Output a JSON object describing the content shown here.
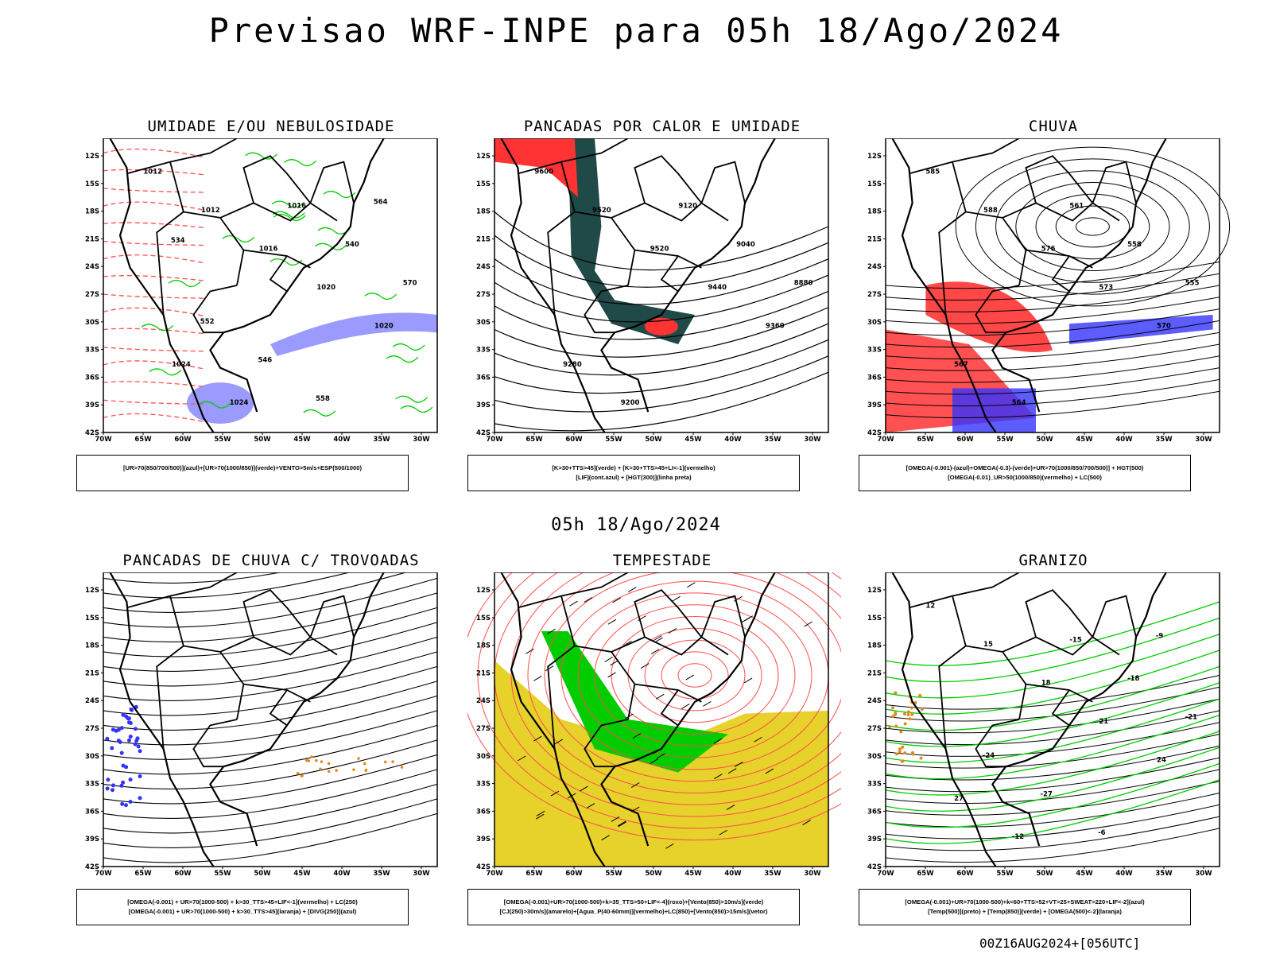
{
  "header": {
    "title": "Previsao WRF-INPE  para 05h 18/Ago/2024"
  },
  "subtitle": "05h 18/Ago/2024",
  "footer": "00Z16AUG2024+[056UTC]",
  "axes": {
    "lat_labels": [
      "12S",
      "15S",
      "18S",
      "21S",
      "24S",
      "27S",
      "30S",
      "33S",
      "36S",
      "39S",
      "42S"
    ],
    "lon_labels": [
      "70W",
      "65W",
      "60W",
      "55W",
      "50W",
      "45W",
      "40W",
      "35W",
      "30W"
    ]
  },
  "panels": [
    {
      "title": "UMIDADE E/OU NEBULOSIDADE",
      "legend": [
        "[UR>70(850/700/500)](azul)+[UR>70(1000/850)](verde)+VENTO>5m/s+ESP(500/1000)"
      ],
      "labels": [
        "1012",
        "1012",
        "1016",
        "1020",
        "1020",
        "1024",
        "1024",
        "1016",
        "540",
        "570",
        "552",
        "546",
        "558",
        "564",
        "534"
      ]
    },
    {
      "title": "PANCADAS POR CALOR E UMIDADE",
      "legend": [
        "[K>30+TTS>45](verde) + [K>30+TTS>45+LI<-1](vermelho)",
        "[LIF](cont.azul) + [HGT(300)](linha preta)"
      ],
      "labels": [
        "9600",
        "9520",
        "9520",
        "9440",
        "9360",
        "9280",
        "9200",
        "9120",
        "9040",
        "8880"
      ]
    },
    {
      "title": "CHUVA",
      "legend": [
        "[OMEGA(-0.001)-(azul)+OMEGA(-0.3)-(verde)+UR>70(1000/850/700/500)] + HGT(500)",
        "[OMEGA(-0.01)_UR>50(1000/850)(vermelho) + LC(500)"
      ],
      "labels": [
        "585",
        "588",
        "576",
        "573",
        "570",
        "567",
        "564",
        "561",
        "558",
        "555"
      ]
    },
    {
      "title": "PANCADAS DE CHUVA C/ TROVOADAS",
      "legend": [
        "[OMEGA(-0.001) + UR>70(1000-500) + k>30_TTS>45+LIF<-1](vermelho) + LC(250)",
        "[OMEGA(-0.001) + UR>70(1000-500) + k>30_TTS>45](laranja) + [DIVG(250)](azul)"
      ],
      "labels": []
    },
    {
      "title": "TEMPESTADE",
      "legend": [
        "[OMEGA(-0.001)+UR>70(1000-500)+k>35_TTS>50+LIF<-4](roxo)+[Vento(850)>10m/s](verde)",
        "[CJ(250)>30m/s](amarelo)+[Agua_P(40-60mm)](vermelho)+LC(850)+[Vento(850)>15m/s](vetor)"
      ],
      "labels": []
    },
    {
      "title": "GRANIZO",
      "legend": [
        "[OMEGA(-0.001)+UR>70(1000-500)+k<60+TTS>52+VT>25+SWEAT>220+LIF<-2](azul)",
        "[Temp(500)](preto) + [Temp(850)](verde) + [OMEGA(500)<-2](laranja)"
      ],
      "labels": [
        "12",
        "15",
        "18",
        "21",
        "24",
        "27",
        "-12",
        "-15",
        "-18",
        "-21",
        "-24",
        "-27",
        "-6",
        "-9"
      ]
    }
  ],
  "colors": {
    "green": "#00cc00",
    "red": "#ff3333",
    "blue": "#3333ff",
    "lightblue": "#8888ff",
    "yellow": "#e6d22a",
    "darkteal": "#1f4a47",
    "orange": "#e08a1e",
    "contour_red": "#ff4d4d"
  }
}
